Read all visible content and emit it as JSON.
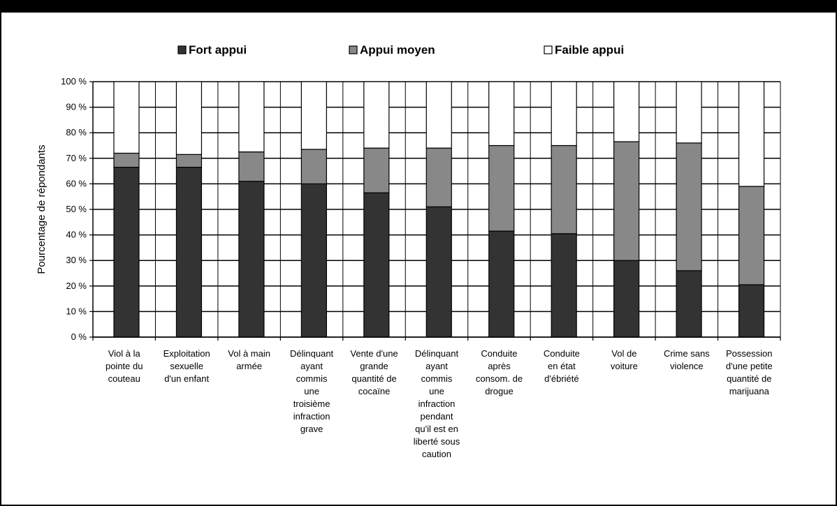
{
  "chart_data": {
    "type": "bar",
    "stacked": true,
    "ylabel": "Pourcentage de répondants",
    "ylim": [
      0,
      100
    ],
    "yticks": [
      "0 %",
      "10 %",
      "20 %",
      "30 %",
      "40 %",
      "50 %",
      "60 %",
      "70 %",
      "80 %",
      "90 %",
      "100 %"
    ],
    "grid": true,
    "legend_position": "top",
    "categories": [
      [
        "Viol à la",
        "pointe du",
        "couteau"
      ],
      [
        "Exploitation",
        "sexuelle",
        "d'un enfant"
      ],
      [
        "Vol à main",
        "armée"
      ],
      [
        "Délinquant",
        "ayant",
        "commis",
        "une",
        "troisième",
        "infraction",
        "grave"
      ],
      [
        "Vente d'une",
        "grande",
        "quantité de",
        "cocaïne"
      ],
      [
        "Délinquant",
        "ayant",
        "commis",
        "une",
        "infraction",
        "pendant",
        "qu'il est en",
        "liberté sous",
        "caution"
      ],
      [
        "Conduite",
        "après",
        "consom. de",
        "drogue"
      ],
      [
        "Conduite",
        "en état",
        "d'ébriété"
      ],
      [
        "Vol de",
        "voiture"
      ],
      [
        "Crime sans",
        "violence"
      ],
      [
        "Possession",
        "d'une petite",
        "quantité de",
        "marijuana"
      ]
    ],
    "series": [
      {
        "name": "Fort appui",
        "color": "#333333",
        "values": [
          66.5,
          66.5,
          61,
          60,
          56.5,
          51,
          41.5,
          40.5,
          30,
          26,
          20.5
        ]
      },
      {
        "name": "Appui moyen",
        "color": "#888888",
        "values": [
          5.5,
          5,
          11.5,
          13.5,
          17.5,
          23,
          33.5,
          34.5,
          46.5,
          50,
          38.5
        ]
      },
      {
        "name": "Faible appui",
        "color": "#ffffff",
        "values": [
          28,
          28.5,
          27.5,
          26.5,
          26,
          26,
          25,
          25,
          23.5,
          24,
          41
        ]
      }
    ]
  }
}
